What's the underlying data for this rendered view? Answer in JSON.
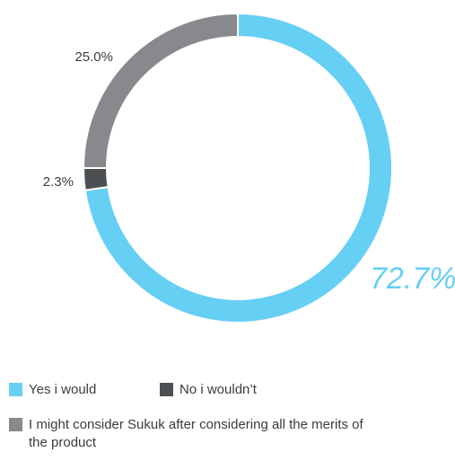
{
  "chart_data": {
    "type": "donut",
    "title": "",
    "series": [
      {
        "name": "Yes i would",
        "value": 72.7,
        "label": "72.7%",
        "color": "#66cff4"
      },
      {
        "name": "No i wouldn’t",
        "value": 2.3,
        "label": "2.3%",
        "color": "#4d5053"
      },
      {
        "name": "I might consider Sukuk after considering all the merits of the product",
        "value": 25.0,
        "label": "25.0%",
        "color": "#88898d"
      }
    ],
    "start_angle": "12 o'clock",
    "direction": "clockwise",
    "legend_position": "bottom-left"
  }
}
